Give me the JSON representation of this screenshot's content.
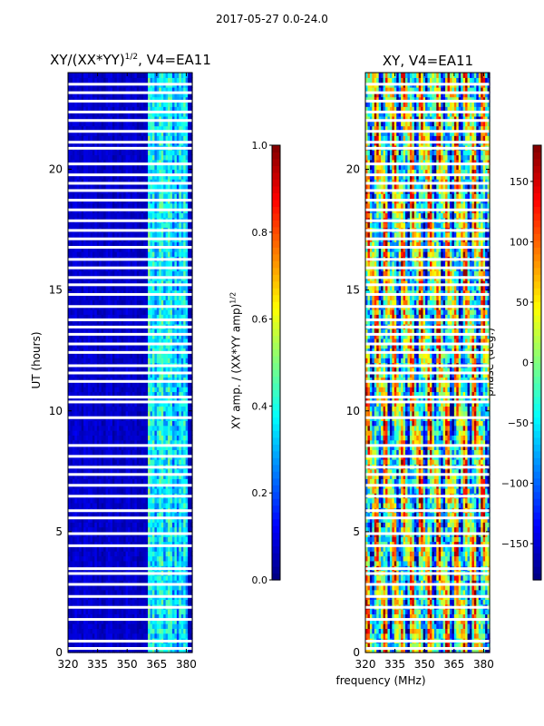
{
  "suptitle": "2017-05-27 0.0-24.0",
  "panels": {
    "left_title": "XY/(XX*YY)^1/2, V4=EA11",
    "left_title_base": "XY/(XX*YY)",
    "left_title_exp": "1/2",
    "left_title_tail": ", V4=EA11",
    "right_title": "XY, V4=EA11",
    "ylabel": "UT (hours)",
    "xlabel": "frequency (MHz)",
    "cbar_left_label_base": "XY amp. / (XX*YY amp)",
    "cbar_left_label_exp": "1/2",
    "cbar_right_label": "phase (deg.)"
  },
  "chart_data": [
    {
      "type": "heatmap",
      "name": "amplitude",
      "title": "XY/(XX*YY)^1/2, V4=EA11",
      "xlabel": "",
      "ylabel": "UT (hours)",
      "xlim": [
        320,
        383
      ],
      "ylim": [
        0,
        24
      ],
      "xticks": [
        "320",
        "335",
        "350",
        "365",
        "380"
      ],
      "yticks": [
        "0",
        "5",
        "10",
        "15",
        "20"
      ],
      "xtick_values": [
        320,
        335,
        350,
        365,
        380
      ],
      "ytick_values": [
        0,
        5,
        10,
        15,
        20
      ],
      "colormap": "jet",
      "colorbar": {
        "range": [
          0.0,
          1.0
        ],
        "ticks": [
          "0.0",
          "0.2",
          "0.4",
          "0.6",
          "0.8",
          "1.0"
        ],
        "tick_values": [
          0,
          0.2,
          0.4,
          0.6,
          0.8,
          1.0
        ],
        "label": "XY amp. / (XX*YY amp)^1/2"
      },
      "bands": [
        {
          "x_range": [
            320,
            360
          ],
          "value_range": [
            0.02,
            0.12
          ]
        },
        {
          "x_range": [
            360,
            381
          ],
          "value_range": [
            0.15,
            0.55
          ]
        }
      ],
      "blank_times": [
        0.15,
        0.45,
        1.35,
        1.85,
        2.3,
        2.8,
        3.25,
        3.45,
        4.4,
        4.9,
        5.55,
        5.85,
        6.45,
        6.9,
        7.35,
        7.65,
        8.1,
        8.55,
        9.7,
        10.35,
        10.55,
        11.2,
        11.55,
        11.85,
        12.4,
        12.75,
        13.15,
        13.45,
        13.75,
        14.3,
        14.8,
        15.2,
        15.5,
        15.9,
        16.25,
        16.75,
        17.1,
        17.45,
        17.85,
        18.3,
        18.7,
        19.1,
        19.4,
        19.75,
        20.2,
        20.85,
        21.1,
        21.55,
        22.0,
        22.35,
        22.8,
        23.15,
        23.5
      ]
    },
    {
      "type": "heatmap",
      "name": "phase",
      "title": "XY, V4=EA11",
      "xlabel": "frequency (MHz)",
      "ylabel": "",
      "xlim": [
        320,
        383
      ],
      "ylim": [
        0,
        24
      ],
      "xticks": [
        "320",
        "335",
        "350",
        "365",
        "380"
      ],
      "yticks": [
        "0",
        "5",
        "10",
        "15",
        "20"
      ],
      "xtick_values": [
        320,
        335,
        350,
        365,
        380
      ],
      "ytick_values": [
        0,
        5,
        10,
        15,
        20
      ],
      "colormap": "jet",
      "colorbar": {
        "range": [
          -180,
          180
        ],
        "ticks": [
          "−150",
          "−100",
          "−50",
          "0",
          "50",
          "100",
          "150"
        ],
        "tick_values": [
          -150,
          -100,
          -50,
          0,
          50,
          100,
          150
        ],
        "label": "phase (deg.)"
      },
      "bands": [
        {
          "x_range": [
            320,
            383
          ],
          "value_range": [
            -180,
            180
          ]
        }
      ],
      "blank_times": [
        0.15,
        0.45,
        1.35,
        1.85,
        2.3,
        2.8,
        3.25,
        3.45,
        4.4,
        4.9,
        5.55,
        5.85,
        6.45,
        6.9,
        7.35,
        7.65,
        8.1,
        8.55,
        9.7,
        10.35,
        10.55,
        11.2,
        11.55,
        11.85,
        12.4,
        12.75,
        13.15,
        13.45,
        13.75,
        14.3,
        14.8,
        15.2,
        15.5,
        15.9,
        16.25,
        16.75,
        17.1,
        17.45,
        17.85,
        18.3,
        18.7,
        19.1,
        19.4,
        19.75,
        20.2,
        20.85,
        21.1,
        21.55,
        22.0,
        22.35,
        22.8,
        23.15,
        23.5
      ]
    }
  ]
}
